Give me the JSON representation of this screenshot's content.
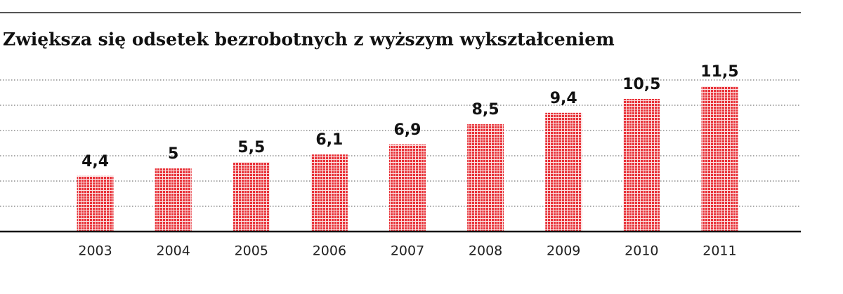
{
  "chart_data": {
    "type": "bar",
    "title": "Zwiększa się odsetek bezrobotnych z wyższym wykształceniem",
    "categories": [
      "2003",
      "2004",
      "2005",
      "2006",
      "2007",
      "2008",
      "2009",
      "2010",
      "2011"
    ],
    "values": [
      4.4,
      5,
      5.5,
      6.1,
      6.9,
      8.5,
      9.4,
      10.5,
      11.5
    ],
    "value_labels": [
      "4,4",
      "5",
      "5,5",
      "6,1",
      "6,9",
      "8,5",
      "9,4",
      "10,5",
      "11,5"
    ],
    "color": "#e8333a",
    "ylim": [
      0,
      12
    ],
    "yticks": [
      0,
      2,
      4,
      6,
      8,
      10,
      12
    ],
    "grid": true
  }
}
